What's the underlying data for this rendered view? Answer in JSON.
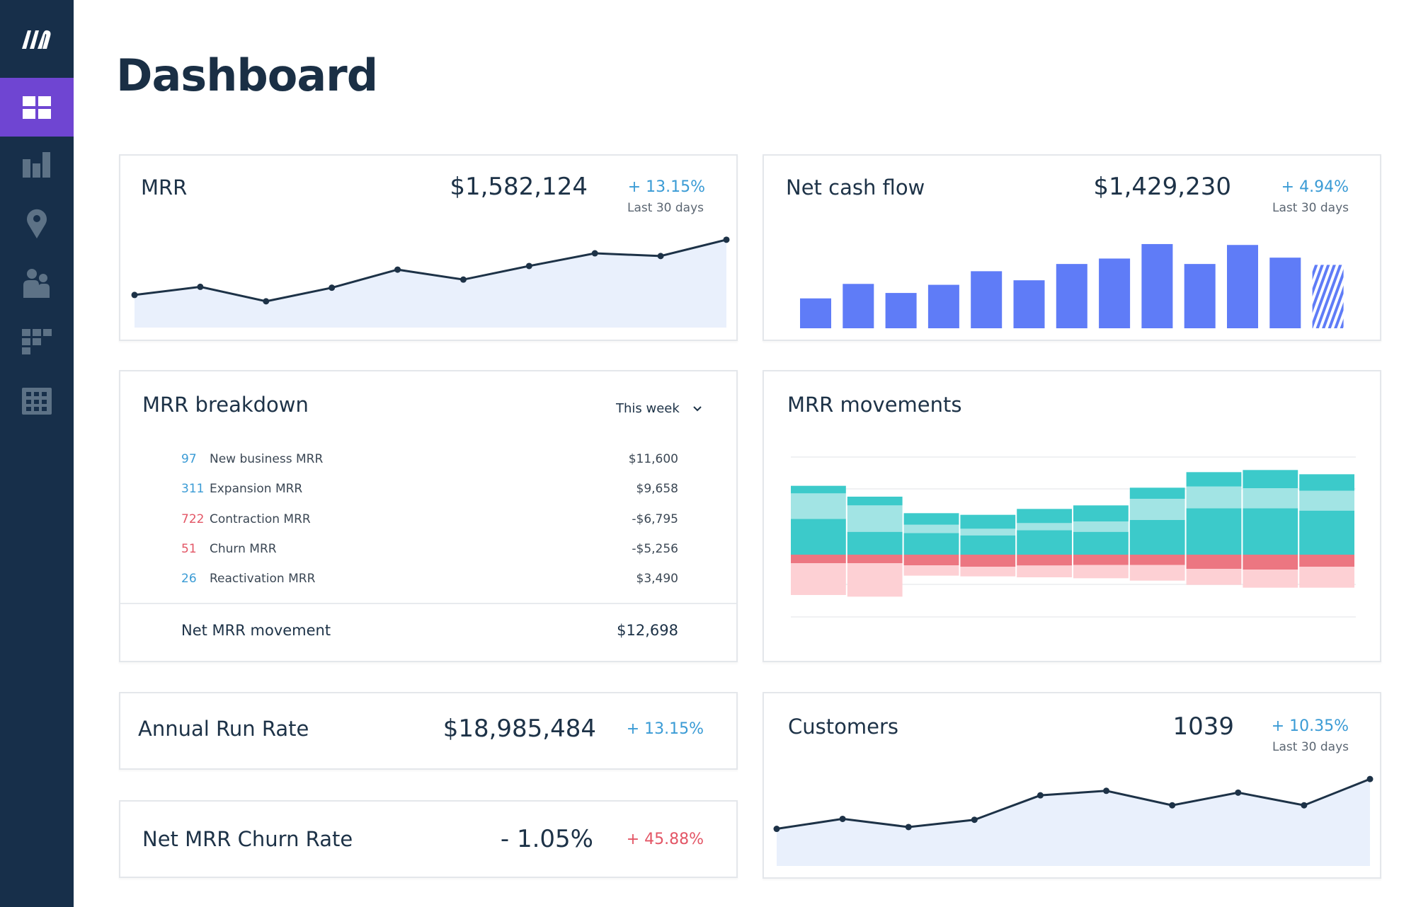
{
  "sidebar": {
    "logo": "M",
    "active_color": "#6f45d2",
    "items": [
      {
        "icon": "dashboard-grid-icon",
        "active": true
      },
      {
        "icon": "bar-chart-icon",
        "active": false
      },
      {
        "icon": "location-pin-icon",
        "active": false
      },
      {
        "icon": "users-icon",
        "active": false
      },
      {
        "icon": "segments-icon",
        "active": false
      },
      {
        "icon": "table-grid-icon",
        "active": false
      }
    ]
  },
  "header": {
    "title": "Dashboard"
  },
  "mrr": {
    "title": "MRR",
    "value": "$1,582,124",
    "change": "+ 13.15%",
    "period": "Last 30 days",
    "chart_data": {
      "type": "area",
      "values": [
        36,
        45,
        29,
        44,
        64,
        53,
        68,
        82,
        79,
        97
      ],
      "ylim": [
        0,
        100
      ]
    }
  },
  "net_cash_flow": {
    "title": "Net cash flow",
    "value": "$1,429,230",
    "change": "+ 4.94%",
    "period": "Last 30 days",
    "chart_data": {
      "type": "bar",
      "values": [
        33,
        49,
        39,
        48,
        63,
        53,
        71,
        77,
        93,
        71,
        92,
        78,
        70
      ],
      "last_is_projected": true,
      "ylim": [
        0,
        100
      ],
      "color": "#5f7cf7"
    }
  },
  "mrr_breakdown": {
    "title": "MRR breakdown",
    "period_select": "This week",
    "rows": [
      {
        "count": "97",
        "label": "New business MRR",
        "value": "$11,600",
        "tone": "positive"
      },
      {
        "count": "311",
        "label": "Expansion MRR",
        "value": "$9,658",
        "tone": "positive"
      },
      {
        "count": "722",
        "label": "Contraction MRR",
        "value": "-$6,795",
        "tone": "negative"
      },
      {
        "count": "51",
        "label": "Churn MRR",
        "value": "-$5,256",
        "tone": "negative"
      },
      {
        "count": "26",
        "label": "Reactivation MRR",
        "value": "$3,490",
        "tone": "positive"
      }
    ],
    "net_label": "Net MRR movement",
    "net_value": "$12,698"
  },
  "mrr_movements": {
    "title": "MRR movements",
    "chart_data": {
      "type": "bar",
      "stacked": true,
      "series": [
        {
          "color": "#3ccaca",
          "values": [
            152,
            97,
            92,
            82,
            104,
            97,
            147,
            197,
            197,
            187
          ]
        },
        {
          "color": "#a2e4e4",
          "values": [
            108,
            112,
            35,
            28,
            30,
            44,
            90,
            92,
            85,
            84
          ]
        },
        {
          "color": "#3ccaca",
          "values": [
            32,
            37,
            49,
            59,
            60,
            68,
            47,
            61,
            77,
            70
          ]
        },
        {
          "color": "#ec7681",
          "values": [
            -36,
            -36,
            -45,
            -51,
            -46,
            -44,
            -44,
            -60,
            -63,
            -51
          ]
        },
        {
          "color": "#fdd0d4",
          "values": [
            -135,
            -142,
            -44,
            -41,
            -50,
            -56,
            -66,
            -68,
            -77,
            -89
          ]
        }
      ],
      "ylim": [
        -250,
        420
      ],
      "grid": true
    }
  },
  "annual_run_rate": {
    "title": "Annual Run Rate",
    "value": "$18,985,484",
    "change": "+ 13.15%"
  },
  "net_mrr_churn": {
    "title": "Net MRR Churn Rate",
    "value": "- 1.05%",
    "change": "+ 45.88%"
  },
  "customers": {
    "title": "Customers",
    "value": "1039",
    "change": "+ 10.35%",
    "period": "Last 30 days",
    "chart_data": {
      "type": "area",
      "values": [
        41,
        52,
        43,
        51,
        78,
        83,
        67,
        81,
        67,
        96
      ],
      "ylim": [
        0,
        100
      ]
    }
  },
  "colors": {
    "navy": "#172f4a",
    "positive": "#3a9bd5",
    "negative": "#e35666",
    "area_fill": "#e9f0fc"
  }
}
